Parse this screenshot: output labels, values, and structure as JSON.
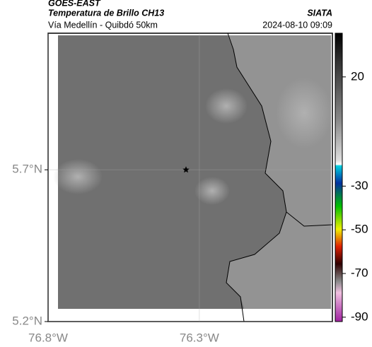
{
  "header": {
    "source": "GOES-EAST",
    "title": "Temperatura de Brillo CH13",
    "org": "SIATA",
    "subtitle": "Vía Medellín - Quibdó 50km",
    "timestamp": "2024-08-10 09:09"
  },
  "map": {
    "xlim": [
      -76.8,
      -75.86
    ],
    "ylim": [
      5.2,
      6.15
    ],
    "xticks": [
      {
        "value": -76.8,
        "label": "76.8°W"
      },
      {
        "value": -76.3,
        "label": "76.3°W"
      }
    ],
    "yticks": [
      {
        "value": 5.7,
        "label": "5.7°N"
      },
      {
        "value": 5.2,
        "label": "5.2°N"
      }
    ],
    "marker": {
      "lon": -76.344,
      "lat": 5.7
    }
  },
  "colorbar": {
    "lim": [
      -92,
      40
    ],
    "ticks": [
      20,
      -30,
      -50,
      -70,
      -90
    ]
  }
}
